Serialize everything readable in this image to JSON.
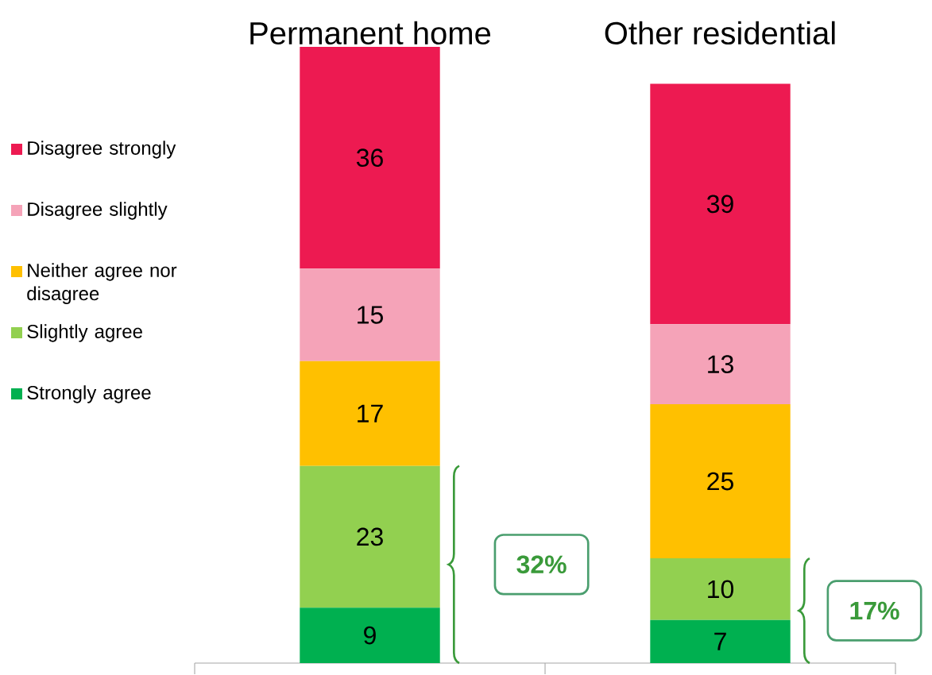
{
  "chart_data": {
    "type": "bar",
    "stacked": true,
    "data_labels": true,
    "legend": "left",
    "categories": [
      "Permanent home",
      "Other residential"
    ],
    "series": [
      {
        "name": "Strongly agree",
        "color": "#00b050",
        "values": [
          9,
          7
        ]
      },
      {
        "name": "Slightly agree",
        "color": "#92d050",
        "values": [
          23,
          10
        ]
      },
      {
        "name": "Neither agree nor disagree",
        "color": "#ffc000",
        "values": [
          17,
          25
        ]
      },
      {
        "name": "Disagree slightly",
        "color": "#f5a3b8",
        "values": [
          15,
          13
        ]
      },
      {
        "name": "Disagree strongly",
        "color": "#ed1a51",
        "values": [
          36,
          39
        ]
      }
    ],
    "annotations": [
      "**32%**",
      "**17%**"
    ]
  }
}
